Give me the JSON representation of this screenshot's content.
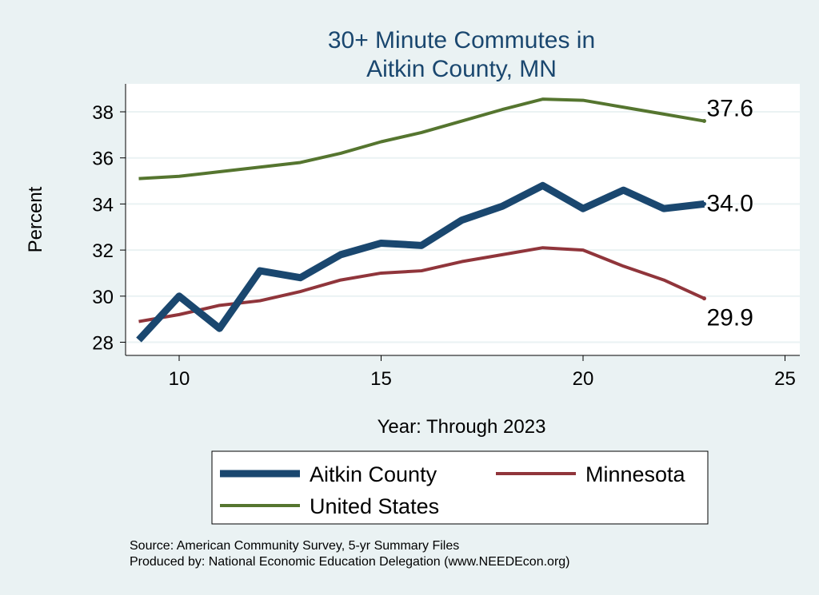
{
  "chart_data": {
    "type": "line",
    "title": [
      "30+ Minute Commutes in",
      "Aitkin County, MN"
    ],
    "xlabel": "Year: Through 2023",
    "ylabel": "Percent",
    "xlim": [
      8.7,
      25.4
    ],
    "ylim": [
      27.6,
      39.2
    ],
    "xticks": [
      10,
      15,
      20,
      25
    ],
    "yticks": [
      28,
      30,
      32,
      34,
      36,
      38
    ],
    "grid": true,
    "legend_placement": "bottom",
    "x": [
      9,
      10,
      11,
      12,
      13,
      14,
      15,
      16,
      17,
      18,
      19,
      20,
      21,
      22,
      23
    ],
    "series": [
      {
        "name": "Aitkin County",
        "color": "#1a476f",
        "width": 9,
        "values": [
          28.1,
          30.0,
          28.6,
          31.1,
          30.8,
          31.8,
          32.3,
          32.2,
          33.3,
          33.9,
          34.8,
          33.8,
          34.6,
          33.8,
          34.0
        ],
        "end_label": "34.0"
      },
      {
        "name": "Minnesota",
        "color": "#90353b",
        "width": 4,
        "values": [
          28.9,
          29.2,
          29.6,
          29.8,
          30.2,
          30.7,
          31.0,
          31.1,
          31.5,
          31.8,
          32.1,
          32.0,
          31.3,
          30.7,
          29.9
        ],
        "end_label": "29.9"
      },
      {
        "name": "United States",
        "color": "#55752f",
        "width": 4,
        "values": [
          35.1,
          35.2,
          35.4,
          35.6,
          35.8,
          36.2,
          36.7,
          37.1,
          37.6,
          38.1,
          38.55,
          38.5,
          38.2,
          37.9,
          37.6
        ],
        "end_label": "37.6"
      }
    ],
    "notes": [
      "Source: American Community Survey, 5-yr Summary Files",
      "Produced by: National Economic Education Delegation (www.NEEDEcon.org)"
    ]
  }
}
